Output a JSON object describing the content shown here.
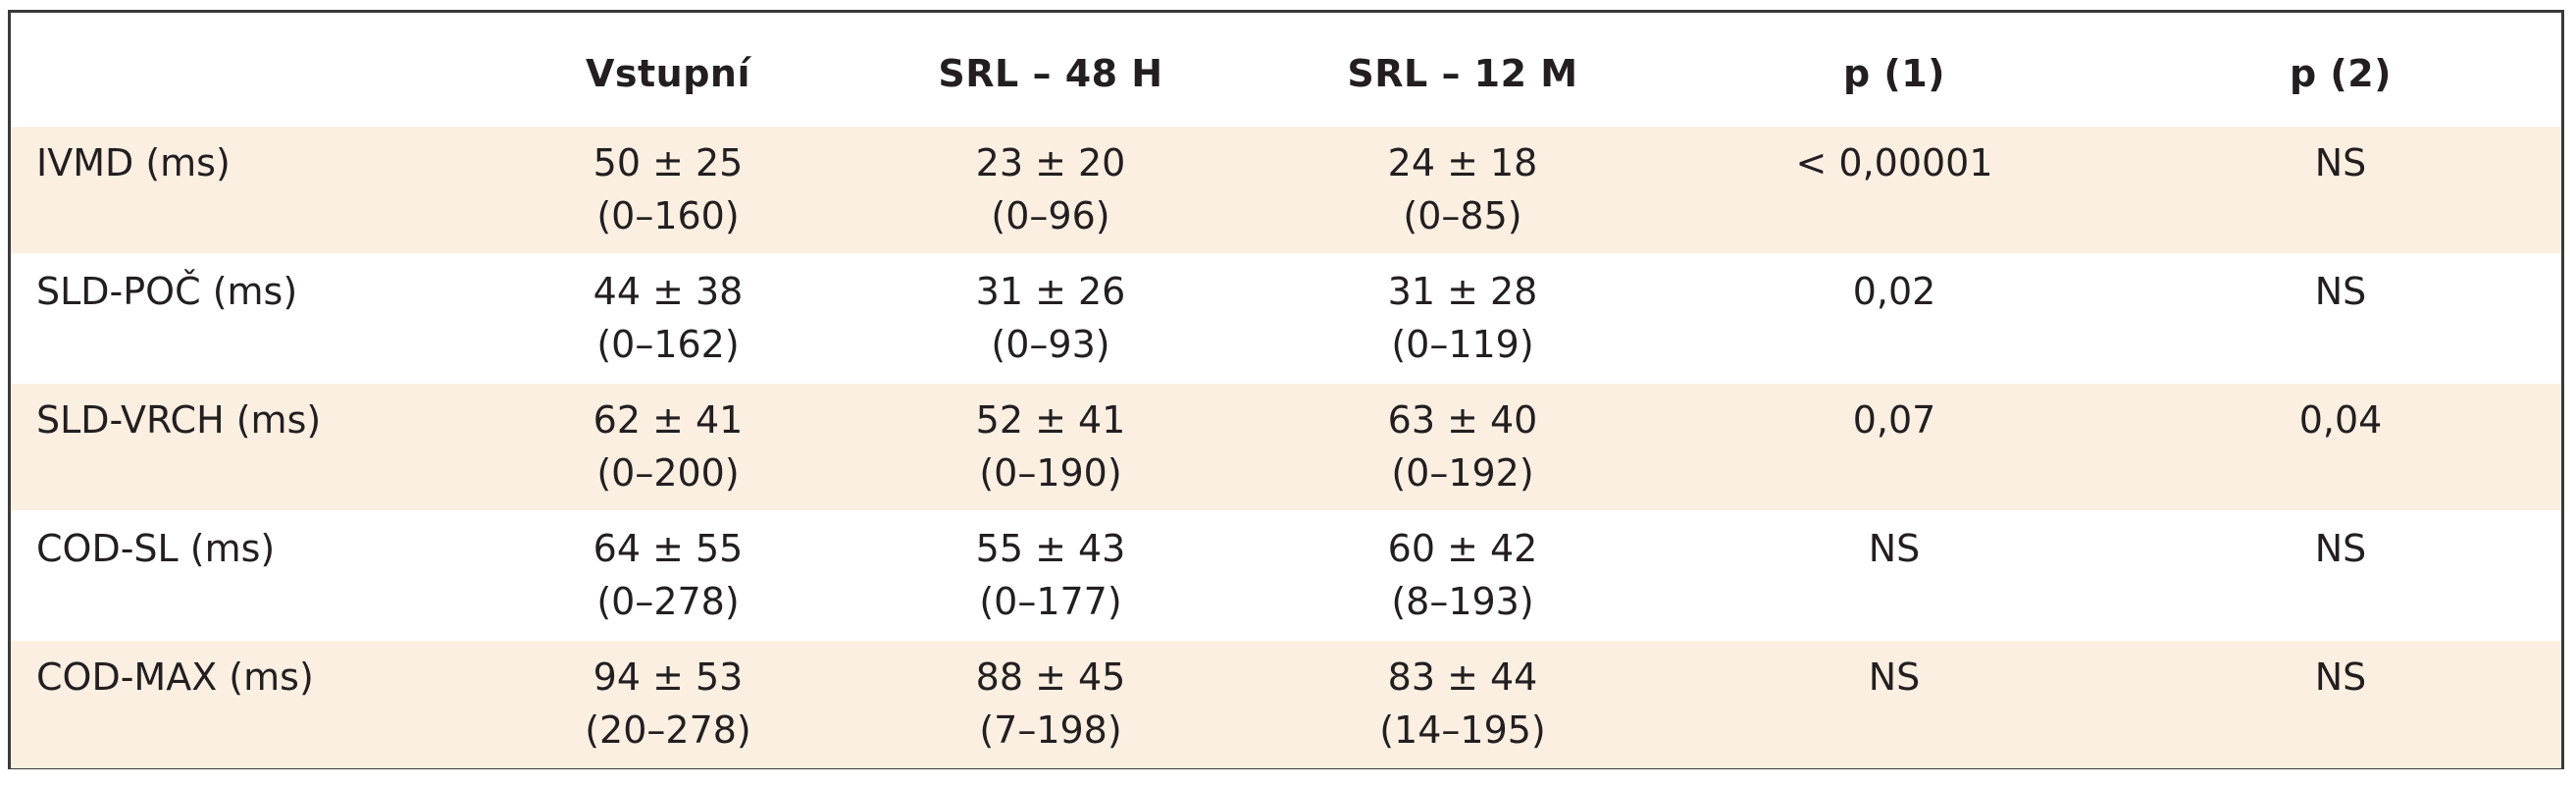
{
  "table": {
    "headers": [
      "",
      "Vstupní",
      "SRL – 48 H",
      "SRL – 12 M",
      "p (1)",
      "p (2)"
    ],
    "rows": [
      {
        "label": "IVMD (ms)",
        "vstupni": {
          "mean": "50 ± 25",
          "range": "(0–160)"
        },
        "srl48": {
          "mean": "23 ± 20",
          "range": "(0–96)"
        },
        "srl12": {
          "mean": "24 ± 18",
          "range": "(0–85)"
        },
        "p1": "< 0,00001",
        "p2": "NS"
      },
      {
        "label": "SLD-POČ (ms)",
        "vstupni": {
          "mean": "44 ± 38",
          "range": "(0–162)"
        },
        "srl48": {
          "mean": "31 ± 26",
          "range": "(0–93)"
        },
        "srl12": {
          "mean": "31 ± 28",
          "range": "(0–119)"
        },
        "p1": "0,02",
        "p2": "NS"
      },
      {
        "label": "SLD-VRCH (ms)",
        "vstupni": {
          "mean": "62 ± 41",
          "range": "(0–200)"
        },
        "srl48": {
          "mean": "52 ± 41",
          "range": "(0–190)"
        },
        "srl12": {
          "mean": "63 ± 40",
          "range": "(0–192)"
        },
        "p1": "0,07",
        "p2": "0,04"
      },
      {
        "label": "COD-SL (ms)",
        "vstupni": {
          "mean": "64 ± 55",
          "range": "(0–278)"
        },
        "srl48": {
          "mean": "55 ± 43",
          "range": "(0–177)"
        },
        "srl12": {
          "mean": "60 ± 42",
          "range": "(8–193)"
        },
        "p1": "NS",
        "p2": "NS"
      },
      {
        "label": "COD-MAX (ms)",
        "vstupni": {
          "mean": "94 ± 53",
          "range": "(20–278)"
        },
        "srl48": {
          "mean": "88 ± 45",
          "range": "(7–198)"
        },
        "srl12": {
          "mean": "83 ± 44",
          "range": "(14–195)"
        },
        "p1": "NS",
        "p2": "NS"
      }
    ],
    "colors": {
      "shaded_row": "#fbefe2",
      "border": "#3a3a3a",
      "text": "#231f20"
    }
  }
}
